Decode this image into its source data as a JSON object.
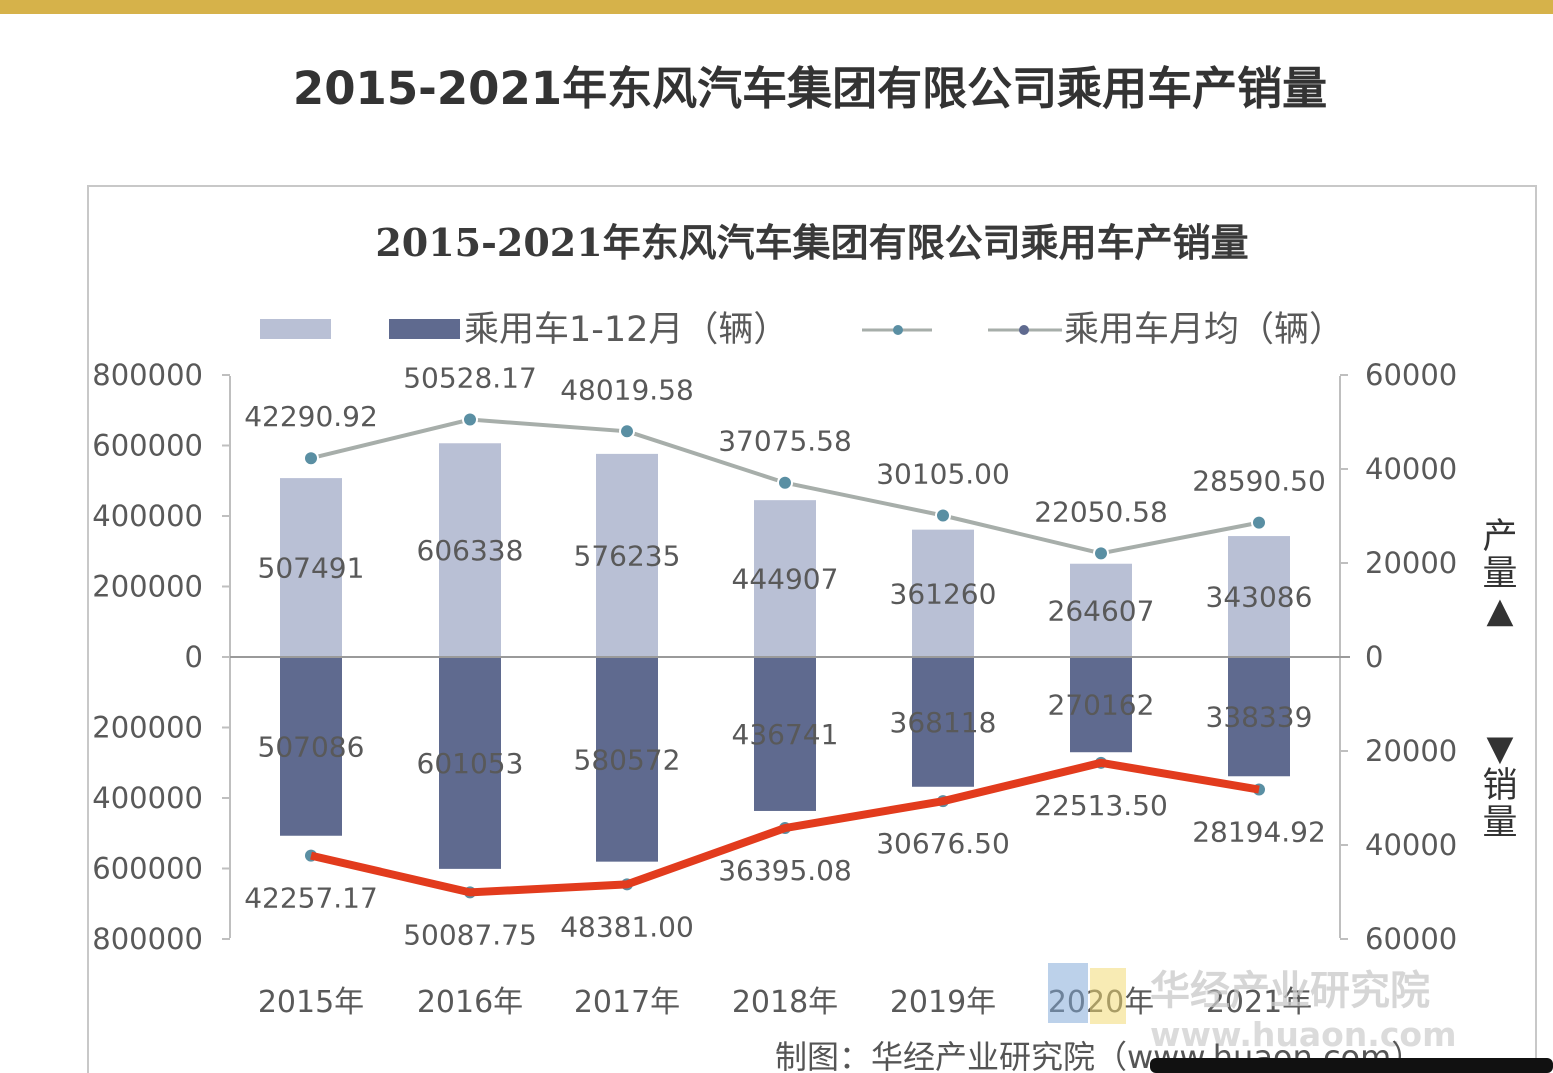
{
  "page_title": "2015-2021年东风汽车集团有限公司乘用车产销量",
  "colors": {
    "production_bar": "#b9c0d5",
    "sales_bar": "#5f6a8f",
    "production_line": "#a7aeaa",
    "sales_line": "#e23b1d",
    "marker": "#5a8fa3"
  },
  "chart_data": {
    "type": "bar",
    "title": "2015-2021年东风汽车集团有限公司乘用车产销量",
    "categories": [
      "2015年",
      "2016年",
      "2017年",
      "2018年",
      "2019年",
      "2020年",
      "2021年"
    ],
    "series": [
      {
        "kind": "bar",
        "axis": "left",
        "direction": "up",
        "values": [
          507491,
          606338,
          576235,
          444907,
          361260,
          264607,
          343086
        ]
      },
      {
        "name": "乘用车1-12月（辆）",
        "kind": "bar",
        "axis": "left",
        "direction": "down",
        "values": [
          507086,
          601053,
          580572,
          436741,
          368118,
          270162,
          338339
        ]
      },
      {
        "kind": "line",
        "axis": "right",
        "direction": "up",
        "values": [
          42290.92,
          50528.17,
          48019.58,
          37075.58,
          30105.0,
          22050.58,
          28590.5
        ]
      },
      {
        "name": "乘用车月均（辆）",
        "kind": "line",
        "axis": "right",
        "direction": "down",
        "values": [
          42257.17,
          50087.75,
          48381.0,
          36395.08,
          30676.5,
          22513.5,
          28194.92
        ]
      }
    ],
    "value_labels": {
      "production_bars": [
        "507491",
        "606338",
        "576235",
        "444907",
        "361260",
        "264607",
        "343086"
      ],
      "sales_bars": [
        "507086",
        "601053",
        "580572",
        "436741",
        "368118",
        "270162",
        "338339"
      ],
      "production_line": [
        "42290.92",
        "50528.17",
        "48019.58",
        "37075.58",
        "30105.00",
        "22050.58",
        "28590.50"
      ],
      "sales_line": [
        "42257.17",
        "50087.75",
        "48381.00",
        "36395.08",
        "30676.50",
        "22513.50",
        "28194.92"
      ]
    },
    "left_axis": {
      "ylim": [
        -800000,
        800000
      ],
      "ticks": [
        800000,
        600000,
        400000,
        200000,
        0,
        -200000,
        -400000,
        -600000,
        -800000
      ],
      "tick_labels": [
        "800000",
        "600000",
        "400000",
        "200000",
        "0",
        "200000",
        "400000",
        "600000",
        "800000"
      ]
    },
    "right_axis": {
      "ylim": [
        -60000,
        60000
      ],
      "ticks": [
        60000,
        40000,
        20000,
        0,
        -20000,
        -40000,
        -60000
      ],
      "tick_labels": [
        "60000",
        "40000",
        "20000",
        "0",
        "20000",
        "40000",
        "60000"
      ],
      "upper_label": "产量▲",
      "lower_label": "▼销量"
    },
    "legend": {
      "placement": "top",
      "bar_label": "乘用车1-12月（辆）",
      "line_label": "乘用车月均（辆）"
    },
    "grid": false
  },
  "watermark": {
    "name": "华经产业研究院",
    "url": "www.huaon.com"
  },
  "source": "制图：华经产业研究院（www.huaon.com）"
}
